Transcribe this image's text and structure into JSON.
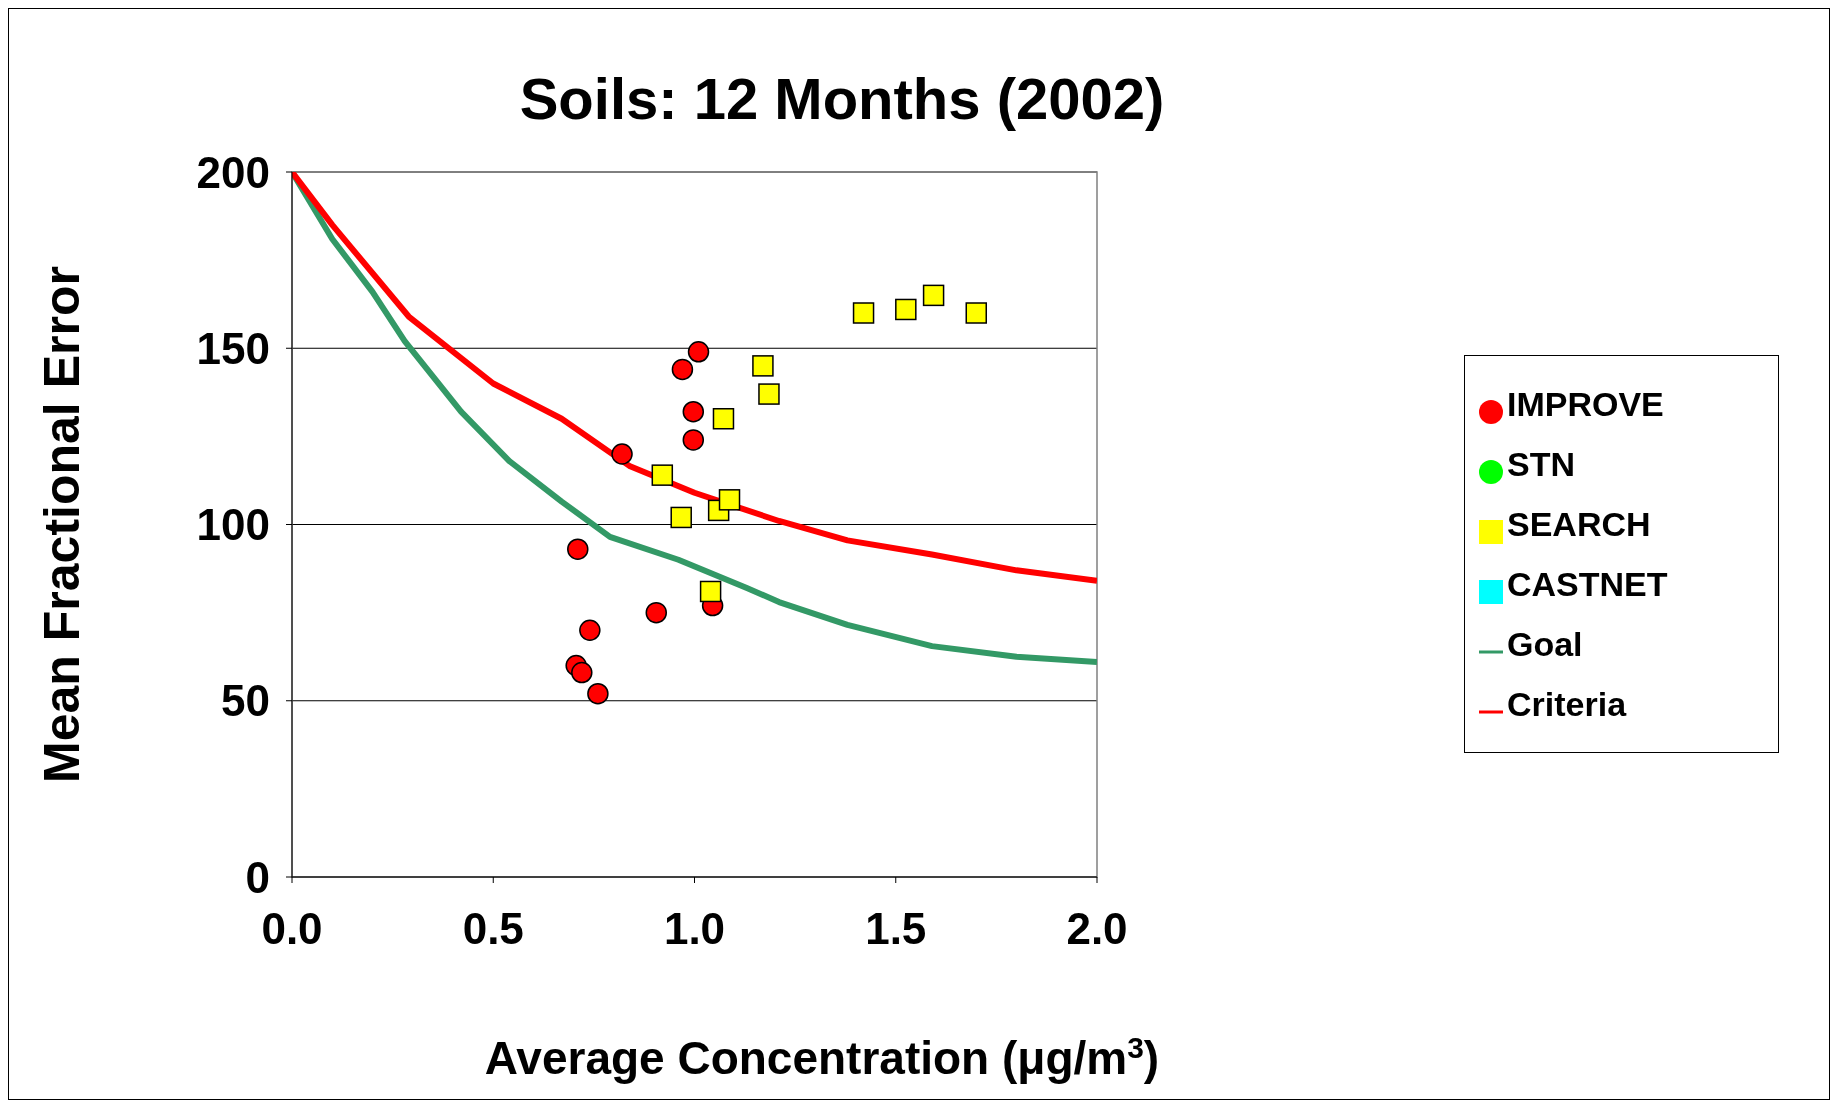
{
  "chart_data": {
    "type": "scatter",
    "title": "Soils: 12 Months (2002)",
    "xlabel": "Average Concentration (μg/m$^{3}$)",
    "ylabel": "Mean Fractional Error",
    "xlim": [
      0,
      2
    ],
    "xticks": [
      {
        "value": 0,
        "label": "0.0"
      },
      {
        "value": 0.5,
        "label": "0.5"
      },
      {
        "value": 1,
        "label": "1.0"
      },
      {
        "value": 1.5,
        "label": "1.5"
      },
      {
        "value": 2,
        "label": "2.0"
      }
    ],
    "ylim": [
      0,
      200
    ],
    "yticks": [
      0,
      50,
      100,
      150,
      200
    ],
    "grid": "y",
    "legend": "right",
    "series": [
      {
        "name": "IMPROVE",
        "color": "#ff0000",
        "marker": "circle",
        "x": [
          0.71,
          0.74,
          0.706,
          0.72,
          0.76,
          0.905,
          0.82,
          0.97,
          1.01,
          0.997,
          0.997,
          1.045
        ],
        "values": [
          93,
          70,
          60,
          58,
          52,
          75,
          120,
          144,
          149,
          132,
          124,
          77
        ]
      },
      {
        "name": "STN",
        "color": "#00ff00",
        "marker": "circle"
      },
      {
        "name": "SEARCH",
        "color": "#ffff00",
        "marker": "square",
        "x": [
          0.92,
          0.967,
          1.04,
          1.06,
          1.087,
          1.072,
          1.17,
          1.185,
          1.42,
          1.525,
          1.594,
          1.7
        ],
        "values": [
          114,
          102,
          81,
          104,
          107,
          130,
          145,
          137,
          160,
          161,
          165,
          160
        ]
      },
      {
        "name": "CASTNET",
        "color": "#00ffff",
        "marker": "square"
      },
      {
        "name": "Goal",
        "type": "line",
        "color": "#339966",
        "marker": "none",
        "x": [
          0,
          0.1,
          0.2,
          0.28,
          0.42,
          0.54,
          0.67,
          0.79,
          0.96,
          1.13,
          1.21,
          1.38,
          1.59,
          1.8,
          2.0
        ],
        "values": [
          200,
          181,
          166,
          152,
          132,
          118,
          106.5,
          96.5,
          90,
          82,
          78,
          71.5,
          65.5,
          62.5,
          61
        ]
      },
      {
        "name": "Criteria",
        "type": "line",
        "color": "#ff0000",
        "marker": "none",
        "x": [
          0,
          0.1,
          0.29,
          0.5,
          0.67,
          0.84,
          1.0,
          1.21,
          1.38,
          1.59,
          1.8,
          2.0
        ],
        "values": [
          200,
          185,
          159,
          140,
          130,
          116.5,
          109,
          101,
          95.5,
          91.5,
          87,
          84
        ]
      }
    ]
  }
}
